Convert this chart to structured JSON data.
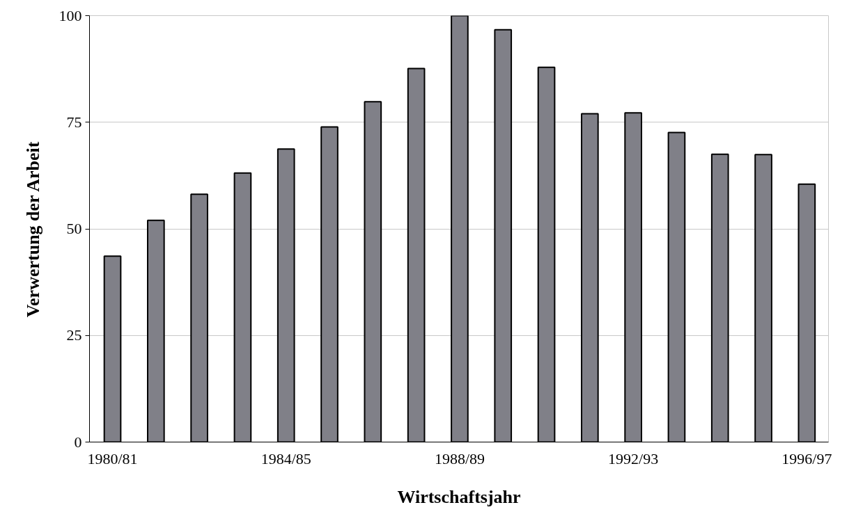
{
  "chart_data": {
    "type": "bar",
    "xlabel": "Wirtschaftsjahr",
    "ylabel": "Verwertung der Arbeit",
    "categories": [
      "1980/81",
      null,
      null,
      null,
      "1984/85",
      null,
      null,
      null,
      "1988/89",
      null,
      null,
      null,
      "1992/93",
      null,
      null,
      null,
      "1996/97"
    ],
    "values": [
      43.6,
      52.0,
      58.1,
      63.1,
      68.7,
      73.9,
      79.8,
      87.6,
      100,
      96.7,
      87.9,
      77.0,
      77.2,
      72.6,
      67.5,
      67.4,
      60.5
    ],
    "color": "#808088",
    "ylim": [
      0,
      100
    ],
    "yticks": [
      0,
      25,
      50,
      75,
      100
    ],
    "grid": "y"
  }
}
